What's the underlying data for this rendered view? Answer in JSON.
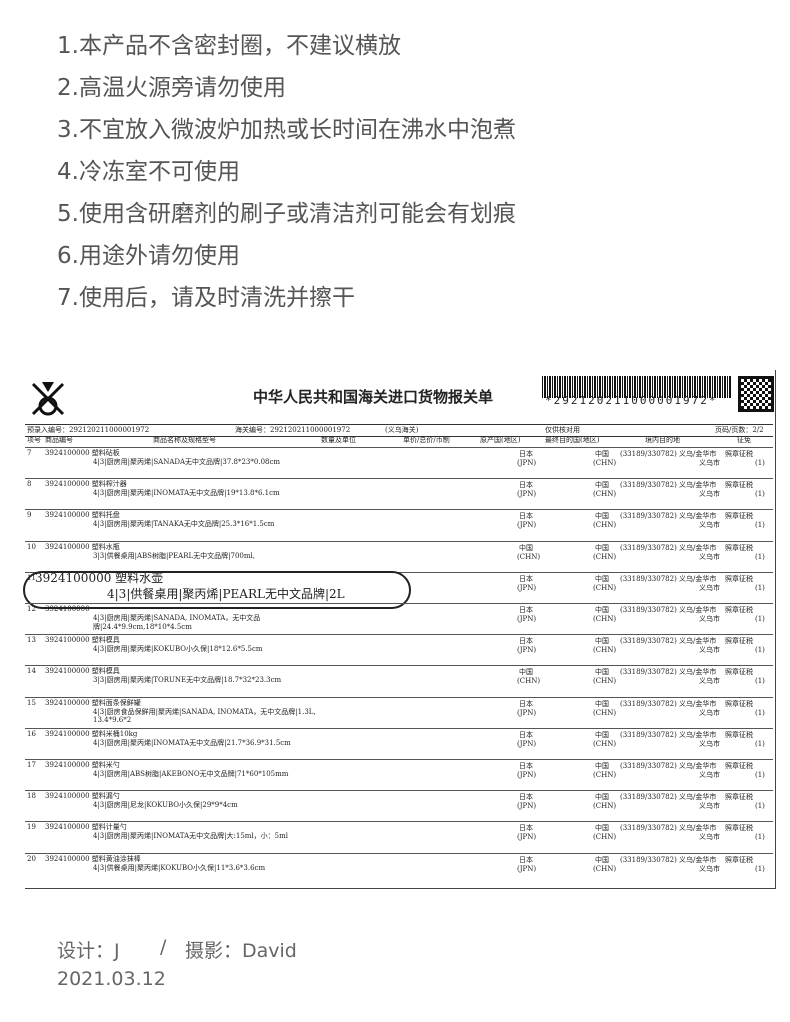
{
  "notes": [
    "1.本产品不含密封圈，不建议横放",
    "2.高温火源旁请勿使用",
    "3.不宜放入微波炉加热或长时间在沸水中泡煮",
    "4.冷冻室不可使用",
    "5.使用含研磨剂的刷子或清洁剂可能会有划痕",
    "6.用途外请勿使用",
    "7.使用后，请及时清洗并擦干"
  ],
  "form": {
    "title": "中华人民共和国海关进口货物报关单",
    "barcode_text": "*292120211000001972*",
    "preentry": "预录入编号：292120211000001972",
    "customs_no": "海关编号：292120211000001972",
    "port": "(义乌海关)",
    "note": "仅供核对用",
    "page": "页码/页数：2/2",
    "headers": [
      "项号",
      "商品编号",
      "商品名称及规格型号",
      "数量及单位",
      "单价/总价/币制",
      "原产国(地区)",
      "最终目的国(地区)",
      "境内目的地",
      "征免"
    ],
    "rows": [
      {
        "no": "7",
        "code": "3924100000 塑料砧板",
        "spec": "4|3|厨房用|聚丙烯|SANADA无中文品牌|37.8*23*0.08cm",
        "origin": "日本",
        "origin_code": "(JPN)",
        "dest": "中国",
        "dest_code": "(CHN)",
        "place": "(33189/330782) 义乌/金华市",
        "place_city": "义乌市",
        "levy": "照章征税",
        "levy_code": "(1)"
      },
      {
        "no": "8",
        "code": "3924100000 塑料榨汁器",
        "spec": "4|3|厨房用|聚丙烯|INOMATA无中文品牌|19*13.8*6.1cm",
        "origin": "日本",
        "origin_code": "(JPN)",
        "dest": "中国",
        "dest_code": "(CHN)",
        "place": "(33189/330782) 义乌/金华市",
        "place_city": "义乌市",
        "levy": "照章征税",
        "levy_code": "(1)"
      },
      {
        "no": "9",
        "code": "3924100000 塑料托盘",
        "spec": "4|3|厨房用|聚丙烯|TANAKA无中文品牌|25.3*16*1.5cm",
        "origin": "日本",
        "origin_code": "(JPN)",
        "dest": "中国",
        "dest_code": "(CHN)",
        "place": "(33189/330782) 义乌/金华市",
        "place_city": "义乌市",
        "levy": "照章征税",
        "levy_code": "(1)"
      },
      {
        "no": "10",
        "code": "3924100000 塑料水瓶",
        "spec": "3|3|供餐桌用|ABS树脂|PEARL无中文品牌|700ml,",
        "origin": "中国",
        "origin_code": "(CHN)",
        "dest": "中国",
        "dest_code": "(CHN)",
        "place": "(33189/330782) 义乌/金华市",
        "place_city": "义乌市",
        "levy": "照章征税",
        "levy_code": "(1)"
      },
      {
        "no": "11",
        "code": "3924100000 塑料水壶",
        "spec": "4|3|供餐桌用|聚丙烯|PEARL无中文品牌|2L",
        "origin": "日本",
        "origin_code": "(JPN)",
        "dest": "中国",
        "dest_code": "(CHN)",
        "place": "(33189/330782) 义乌/金华市",
        "place_city": "义乌市",
        "levy": "照章征税",
        "levy_code": "(1)",
        "highlight": true
      },
      {
        "no": "12",
        "code": "3924100000",
        "spec": "4|3|厨房用|聚丙烯|SANADA, INOMATA，无中文品牌|24.4*9.9cm,18*10*4.5cm",
        "origin": "日本",
        "origin_code": "(JPN)",
        "dest": "中国",
        "dest_code": "(CHN)",
        "place": "(33189/330782) 义乌/金华市",
        "place_city": "义乌市",
        "levy": "照章征税",
        "levy_code": "(1)"
      },
      {
        "no": "13",
        "code": "3924100000 塑料模具",
        "spec": "4|3|厨房用|聚丙烯|KOKUBO小久保|18*12.6*5.5cm",
        "origin": "日本",
        "origin_code": "(JPN)",
        "dest": "中国",
        "dest_code": "(CHN)",
        "place": "(33189/330782) 义乌/金华市",
        "place_city": "义乌市",
        "levy": "照章征税",
        "levy_code": "(1)"
      },
      {
        "no": "14",
        "code": "3924100000 塑料模具",
        "spec": "3|3|厨房用|聚丙烯|TORUNE无中文品牌|18.7*32*23.3cm",
        "origin": "中国",
        "origin_code": "(CHN)",
        "dest": "中国",
        "dest_code": "(CHN)",
        "place": "(33189/330782) 义乌/金华市",
        "place_city": "义乌市",
        "levy": "照章征税",
        "levy_code": "(1)"
      },
      {
        "no": "15",
        "code": "3924100000 塑料面条保鲜罐",
        "spec": "4|3|厨房食品保鲜用|聚丙烯|SANADA, INOMATA，无中文品牌|1.3L, 13.4*9.6*2",
        "origin": "日本",
        "origin_code": "(JPN)",
        "dest": "中国",
        "dest_code": "(CHN)",
        "place": "(33189/330782) 义乌/金华市",
        "place_city": "义乌市",
        "levy": "照章征税",
        "levy_code": "(1)"
      },
      {
        "no": "16",
        "code": "3924100000 塑料米桶10kg",
        "spec": "4|3|厨房用|聚丙烯|INOMATA无中文品牌|21.7*36.9*31.5cm",
        "origin": "日本",
        "origin_code": "(JPN)",
        "dest": "中国",
        "dest_code": "(CHN)",
        "place": "(33189/330782) 义乌/金华市",
        "place_city": "义乌市",
        "levy": "照章征税",
        "levy_code": "(1)"
      },
      {
        "no": "17",
        "code": "3924100000 塑料米勺",
        "spec": "4|3|厨房用|ABS树脂|AKEBONO无中文品牌|71*60*105mm",
        "origin": "日本",
        "origin_code": "(JPN)",
        "dest": "中国",
        "dest_code": "(CHN)",
        "place": "(33189/330782) 义乌/金华市",
        "place_city": "义乌市",
        "levy": "照章征税",
        "levy_code": "(1)"
      },
      {
        "no": "18",
        "code": "3924100000 塑料漏勺",
        "spec": "4|3|厨房用|尼龙|KOKUBO小久保|29*9*4cm",
        "origin": "日本",
        "origin_code": "(JPN)",
        "dest": "中国",
        "dest_code": "(CHN)",
        "place": "(33189/330782) 义乌/金华市",
        "place_city": "义乌市",
        "levy": "照章征税",
        "levy_code": "(1)"
      },
      {
        "no": "19",
        "code": "3924100000 塑料计量勺",
        "spec": "4|3|厨房用|聚丙烯|INOMATA无中文品牌|大:15ml，小：5ml",
        "origin": "日本",
        "origin_code": "(JPN)",
        "dest": "中国",
        "dest_code": "(CHN)",
        "place": "(33189/330782) 义乌/金华市",
        "place_city": "义乌市",
        "levy": "照章征税",
        "levy_code": "(1)"
      },
      {
        "no": "20",
        "code": "3924100000 塑料黄油涂抹棒",
        "spec": "4|3|供餐桌用|聚丙烯|KOKUBO小久保|11*3.6*3.6cm",
        "origin": "日本",
        "origin_code": "(JPN)",
        "dest": "中国",
        "dest_code": "(CHN)",
        "place": "(33189/330782) 义乌/金华市",
        "place_city": "义乌市",
        "levy": "照章征税",
        "levy_code": "(1)"
      }
    ]
  },
  "footer": {
    "design": "设计：J",
    "separator": "/",
    "photo": "摄影：David",
    "date": "2021.03.12"
  }
}
